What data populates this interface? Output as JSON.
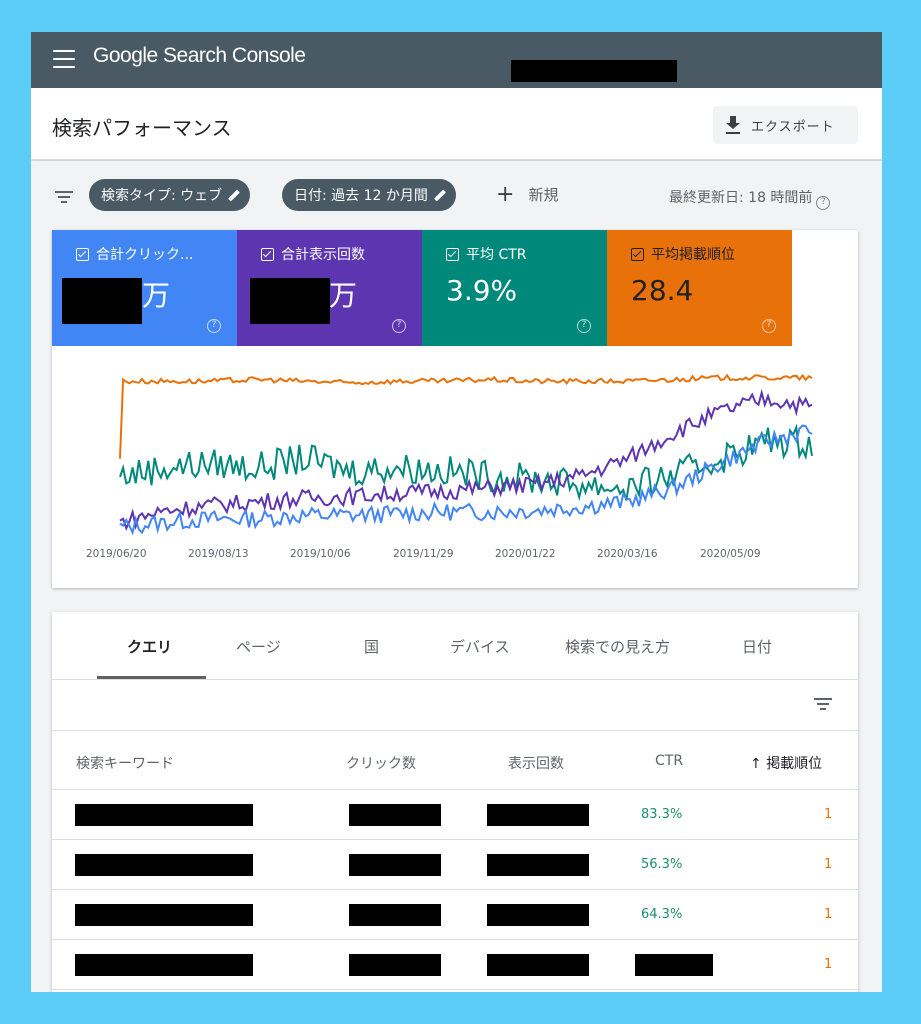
{
  "app": {
    "brand": "Google Search Console"
  },
  "header": {
    "title": "検索パフォーマンス",
    "export_label": "エクスポート"
  },
  "filters": {
    "search_type": "検索タイプ: ウェブ",
    "date": "日付: 過去 12 か月間",
    "new_label": "新規",
    "last_updated": "最終更新日: 18 時間前"
  },
  "metrics": [
    {
      "label": "合計クリック...",
      "value": "万",
      "color": "#4285f4"
    },
    {
      "label": "合計表示回数",
      "value": "万",
      "color": "#5e35b1"
    },
    {
      "label": "平均 CTR",
      "value": "3.9%",
      "color": "#00897b"
    },
    {
      "label": "平均掲載順位",
      "value": "28.4",
      "color": "#e8710a"
    }
  ],
  "chart_data": {
    "type": "line",
    "x_labels": [
      "2019/06/20",
      "2019/08/13",
      "2019/10/06",
      "2019/11/29",
      "2020/01/22",
      "2020/03/16",
      "2020/05/09"
    ],
    "series": [
      {
        "name": "合計クリック...",
        "color": "#4285f4",
        "values": [
          0.05,
          0.08,
          0.1,
          0.1,
          0.12,
          0.12,
          0.13,
          0.14,
          0.14,
          0.15,
          0.17,
          0.2,
          0.28,
          0.42,
          0.55,
          0.62
        ]
      },
      {
        "name": "合計表示回数",
        "color": "#5e35b1",
        "values": [
          0.08,
          0.15,
          0.18,
          0.2,
          0.22,
          0.23,
          0.25,
          0.26,
          0.28,
          0.3,
          0.35,
          0.45,
          0.6,
          0.72,
          0.8,
          0.75
        ]
      },
      {
        "name": "平均 CTR",
        "color": "#00897b",
        "values": [
          0.35,
          0.4,
          0.42,
          0.4,
          0.45,
          0.38,
          0.4,
          0.38,
          0.35,
          0.33,
          0.3,
          0.28,
          0.35,
          0.45,
          0.55,
          0.55
        ]
      },
      {
        "name": "平均掲載順位",
        "color": "#e8710a",
        "values": [
          0.9,
          0.9,
          0.9,
          0.91,
          0.9,
          0.89,
          0.9,
          0.9,
          0.91,
          0.9,
          0.9,
          0.9,
          0.91,
          0.92,
          0.92,
          0.92
        ]
      }
    ]
  },
  "tabs": [
    "クエリ",
    "ページ",
    "国",
    "デバイス",
    "検索での見え方",
    "日付"
  ],
  "table": {
    "headers": {
      "query": "検索キーワード",
      "clicks": "クリック数",
      "impressions": "表示回数",
      "ctr": "CTR",
      "position": "掲載順位"
    },
    "sort_arrow": "↑",
    "rows": [
      {
        "ctr": "83.3%",
        "position": "1"
      },
      {
        "ctr": "56.3%",
        "position": "1"
      },
      {
        "ctr": "64.3%",
        "position": "1"
      },
      {
        "ctr": "",
        "position": "1"
      }
    ]
  }
}
